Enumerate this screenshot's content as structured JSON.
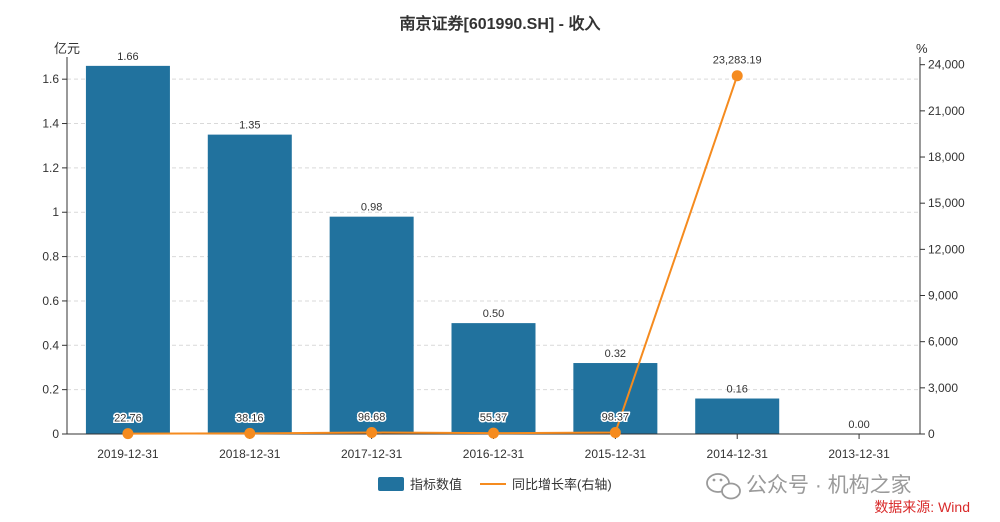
{
  "chart_data": {
    "type": "bar",
    "title": "南京证券[601990.SH] - 收入",
    "categories": [
      "2019-12-31",
      "2018-12-31",
      "2017-12-31",
      "2016-12-31",
      "2015-12-31",
      "2014-12-31",
      "2013-12-31"
    ],
    "series": [
      {
        "name": "指标数值",
        "type": "bar",
        "axis": "left",
        "color": "#21729e",
        "values": [
          1.66,
          1.35,
          0.98,
          0.5,
          0.32,
          0.16,
          0.0
        ],
        "labels": [
          "1.66",
          "1.35",
          "0.98",
          "0.50",
          "0.32",
          "0.16",
          "0.00"
        ]
      },
      {
        "name": "同比增长率(右轴)",
        "type": "line",
        "axis": "right",
        "color": "#f58b1f",
        "values": [
          22.76,
          38.16,
          96.68,
          55.37,
          98.37,
          23283.19,
          null
        ],
        "labels": [
          "22.76",
          "38.16",
          "96.68",
          "55.37",
          "98.37",
          "23,283.19",
          ""
        ]
      }
    ],
    "left_axis": {
      "unit": "亿元",
      "ylim": [
        0,
        1.7
      ],
      "ticks": [
        0,
        0.2,
        0.4,
        0.6,
        0.8,
        1,
        1.2,
        1.4,
        1.6
      ],
      "tick_labels": [
        "0",
        "0.2",
        "0.4",
        "0.6",
        "0.8",
        "1",
        "1.2",
        "1.4",
        "1.6"
      ]
    },
    "right_axis": {
      "unit": "%",
      "ylim": [
        0,
        24500
      ],
      "ticks": [
        0,
        3000,
        6000,
        9000,
        12000,
        15000,
        18000,
        21000,
        24000
      ],
      "tick_labels": [
        "0",
        "3,000",
        "6,000",
        "9,000",
        "12,000",
        "15,000",
        "18,000",
        "21,000",
        "24,000"
      ]
    },
    "grid": true,
    "legend": "bottom-center"
  },
  "watermark": "公众号 · 机构之家",
  "source": "数据来源: Wind",
  "icons": {
    "watermark_icon": "wechat-icon"
  }
}
